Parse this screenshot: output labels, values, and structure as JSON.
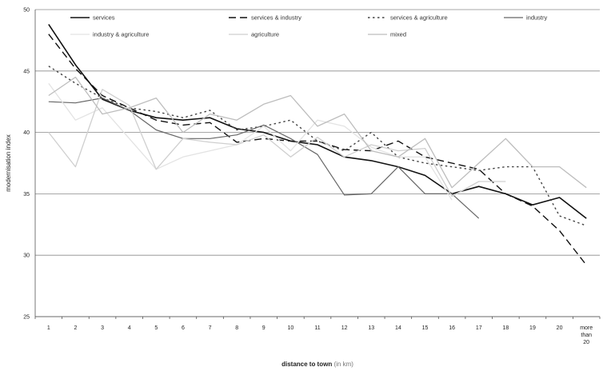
{
  "chart_data": {
    "type": "line",
    "title": "",
    "xlabel": "distance to town",
    "xlabel_unit": "(in km)",
    "ylabel": "modernisation index",
    "ylim": [
      25,
      50
    ],
    "yticks": [
      25,
      30,
      35,
      40,
      45,
      50
    ],
    "grid": true,
    "legend_position": "top",
    "categories": [
      "1",
      "2",
      "3",
      "4",
      "5",
      "6",
      "7",
      "8",
      "9",
      "10",
      "11",
      "12",
      "13",
      "14",
      "15",
      "16",
      "17",
      "18",
      "19",
      "20",
      "more than 20"
    ],
    "category_label_lines": [
      [
        "1"
      ],
      [
        "2"
      ],
      [
        "3"
      ],
      [
        "4"
      ],
      [
        "5"
      ],
      [
        "6"
      ],
      [
        "7"
      ],
      [
        "8"
      ],
      [
        "9"
      ],
      [
        "10"
      ],
      [
        "11"
      ],
      [
        "12"
      ],
      [
        "13"
      ],
      [
        "14"
      ],
      [
        "15"
      ],
      [
        "16"
      ],
      [
        "17"
      ],
      [
        "18"
      ],
      [
        "19"
      ],
      [
        "20"
      ],
      [
        "more",
        "than",
        "20"
      ]
    ],
    "series": [
      {
        "name": "services",
        "color": "#111111",
        "width": 1.6,
        "dash": "",
        "values": [
          48.8,
          45.5,
          42.7,
          41.8,
          41.2,
          41.0,
          41.2,
          40.3,
          40.0,
          39.3,
          39.0,
          38.0,
          37.7,
          37.2,
          36.5,
          35.0,
          35.6,
          35.0,
          34.1,
          34.7,
          33.0
        ]
      },
      {
        "name": "services & industry",
        "color": "#111111",
        "width": 1.4,
        "dash": "9,5",
        "values": [
          48.0,
          45.2,
          43.0,
          42.0,
          41.0,
          40.6,
          40.8,
          39.2,
          39.5,
          39.3,
          39.3,
          38.6,
          38.5,
          39.3,
          38.0,
          37.5,
          37.0,
          35.0,
          34.0,
          32.0,
          29.2
        ]
      },
      {
        "name": "services & agriculture",
        "color": "#444444",
        "width": 1.4,
        "dash": "2.5,3.5",
        "values": [
          45.4,
          44.0,
          42.8,
          42.0,
          41.7,
          41.2,
          41.8,
          40.2,
          40.5,
          41.0,
          39.3,
          38.5,
          40.0,
          38.0,
          37.5,
          37.2,
          36.9,
          37.2,
          37.2,
          33.2,
          32.4
        ]
      },
      {
        "name": "industry",
        "color": "#666666",
        "width": 1.2,
        "dash": "",
        "values": [
          42.5,
          42.4,
          42.8,
          41.8,
          40.2,
          39.5,
          39.5,
          39.8,
          40.6,
          39.5,
          38.2,
          34.9,
          35.0,
          37.2,
          35.0,
          35.0,
          33.0,
          null,
          null,
          null,
          null
        ]
      },
      {
        "name": "industry & agriculture",
        "color": "#e3e3e3",
        "width": 1.3,
        "dash": "",
        "values": [
          44.0,
          41.0,
          42.0,
          39.5,
          37.0,
          38.0,
          38.5,
          39.0,
          40.5,
          38.5,
          41.0,
          40.5,
          38.8,
          38.0,
          38.0,
          34.5,
          null,
          null,
          null,
          null,
          null
        ]
      },
      {
        "name": "agriculture",
        "color": "#cfcfcf",
        "width": 1.3,
        "dash": "",
        "values": [
          40.0,
          37.2,
          43.5,
          42.2,
          37.0,
          39.5,
          39.2,
          39.0,
          39.8,
          38.0,
          39.6,
          38.0,
          39.0,
          38.5,
          38.7,
          34.8,
          36.0,
          36.0,
          null,
          null,
          null
        ]
      },
      {
        "name": "mixed",
        "color": "#bdbdbd",
        "width": 1.3,
        "dash": "",
        "values": [
          43.0,
          44.5,
          41.5,
          42.0,
          42.8,
          40.0,
          41.5,
          41.0,
          42.3,
          43.0,
          40.5,
          41.5,
          38.5,
          38.0,
          39.5,
          35.5,
          37.5,
          39.5,
          37.2,
          37.2,
          35.5
        ]
      }
    ]
  }
}
